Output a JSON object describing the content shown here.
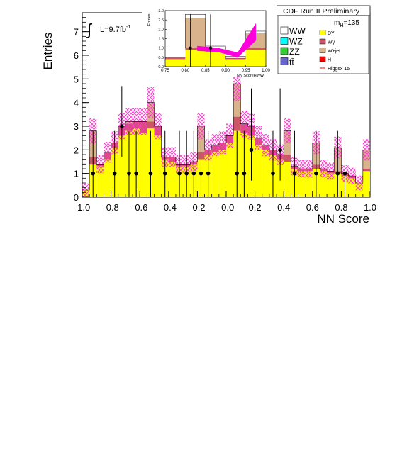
{
  "chart_data": {
    "type": "bar",
    "title": "CDF Run II Preliminary",
    "ylabel": "Entries",
    "xlabel": "NN Score",
    "xlim": [
      -1.0,
      1.0
    ],
    "ylim": [
      0,
      7.8
    ],
    "x_ticks": [
      "-1.0",
      "-0.8",
      "-0.6",
      "-0.4",
      "-0.2",
      "-0.0",
      "0.2",
      "0.4",
      "0.6",
      "0.8",
      "1.0"
    ],
    "y_ticks": [
      "0",
      "1",
      "2",
      "3",
      "4",
      "5",
      "6",
      "7"
    ],
    "luminosity_label": "L=9.7fb",
    "luminosity_sup": "-1",
    "mass_label": "m",
    "mass_sub": "H",
    "mass_value": "=135",
    "bin_edges": [
      -1.0,
      -0.95,
      -0.9,
      -0.85,
      -0.8,
      -0.75,
      -0.7,
      -0.65,
      -0.6,
      -0.55,
      -0.5,
      -0.45,
      -0.4,
      -0.35,
      -0.3,
      -0.25,
      -0.2,
      -0.15,
      -0.1,
      -0.05,
      0.0,
      0.05,
      0.1,
      0.15,
      0.2,
      0.25,
      0.3,
      0.35,
      0.4,
      0.45,
      0.5,
      0.55,
      0.6,
      0.65,
      0.7,
      0.75,
      0.8,
      0.85,
      0.9,
      0.95,
      1.0
    ],
    "series": [
      {
        "name": "DY",
        "color": "#ffff00",
        "values": [
          0.3,
          1.4,
          1.3,
          1.6,
          2.1,
          2.6,
          2.8,
          2.9,
          2.7,
          2.9,
          2.6,
          1.6,
          1.5,
          1.3,
          1.3,
          1.4,
          1.6,
          1.8,
          1.9,
          2.0,
          2.3,
          2.8,
          2.7,
          2.6,
          2.2,
          2.0,
          1.8,
          1.6,
          1.5,
          1.2,
          1.1,
          1.1,
          1.2,
          1.1,
          1.0,
          1.0,
          0.9,
          0.8,
          0.6,
          1.1
        ]
      },
      {
        "name": "Wγ",
        "color": "#cc5566",
        "values": [
          0.0,
          0.3,
          0.1,
          0.3,
          0.2,
          0.4,
          0.3,
          0.3,
          0.5,
          0.3,
          0.4,
          0.1,
          0.2,
          0.1,
          0.1,
          0.1,
          0.3,
          0.2,
          0.3,
          0.3,
          0.3,
          0.6,
          0.4,
          0.4,
          0.3,
          0.2,
          0.2,
          0.2,
          0.3,
          0.1,
          0.1,
          0.1,
          0.2,
          0.1,
          0.1,
          0.1,
          0.1,
          0.1,
          0.0,
          0.1
        ]
      },
      {
        "name": "W+jet",
        "color": "#d9b38c",
        "values": [
          0.0,
          1.1,
          0.0,
          0.0,
          0.0,
          0.0,
          0.1,
          0.0,
          0.0,
          0.8,
          0.0,
          0.0,
          0.0,
          0.0,
          0.0,
          0.0,
          1.1,
          0.0,
          0.0,
          0.0,
          0.0,
          1.4,
          0.0,
          0.0,
          0.0,
          0.0,
          0.0,
          0.0,
          1.0,
          0.0,
          0.0,
          0.0,
          0.9,
          0.0,
          0.0,
          1.0,
          0.0,
          0.0,
          0.0,
          0.8
        ]
      },
      {
        "name": "WW",
        "color": "#ffffff",
        "values": [
          0.0,
          0.0,
          0.0,
          0.0,
          0.0,
          0.0,
          0.0,
          0.0,
          0.0,
          0.0,
          0.0,
          0.0,
          0.0,
          0.0,
          0.0,
          0.0,
          0.0,
          0.0,
          0.0,
          0.0,
          0.0,
          0.0,
          0.0,
          0.0,
          0.0,
          0.0,
          0.0,
          0.0,
          0.0,
          0.0,
          0.0,
          0.0,
          0.0,
          0.0,
          0.0,
          0.0,
          0.0,
          0.0,
          0.0,
          0.0
        ]
      }
    ],
    "band_color": "#ff33cc",
    "data_points": [
      {
        "x": -0.925,
        "y": 1,
        "err_up": 1.8,
        "err_down": 1.0
      },
      {
        "x": -0.775,
        "y": 1,
        "err_up": 1.8,
        "err_down": 1.0
      },
      {
        "x": -0.725,
        "y": 3,
        "err_up": 1.7,
        "err_down": 1.3
      },
      {
        "x": -0.675,
        "y": 1,
        "err_up": 1.8,
        "err_down": 1.0
      },
      {
        "x": -0.625,
        "y": 1,
        "err_up": 1.8,
        "err_down": 1.0
      },
      {
        "x": -0.525,
        "y": 1,
        "err_up": 1.8,
        "err_down": 1.0
      },
      {
        "x": -0.425,
        "y": 1,
        "err_up": 1.8,
        "err_down": 1.0
      },
      {
        "x": -0.325,
        "y": 1,
        "err_up": 1.8,
        "err_down": 1.0
      },
      {
        "x": -0.275,
        "y": 1,
        "err_up": 1.8,
        "err_down": 1.0
      },
      {
        "x": -0.225,
        "y": 1,
        "err_up": 1.8,
        "err_down": 1.0
      },
      {
        "x": -0.175,
        "y": 1,
        "err_up": 1.8,
        "err_down": 1.0
      },
      {
        "x": -0.125,
        "y": 1,
        "err_up": 1.8,
        "err_down": 1.0
      },
      {
        "x": 0.075,
        "y": 1,
        "err_up": 1.8,
        "err_down": 1.0
      },
      {
        "x": 0.125,
        "y": 1,
        "err_up": 1.8,
        "err_down": 1.0
      },
      {
        "x": 0.175,
        "y": 2,
        "err_up": 2.6,
        "err_down": 1.3
      },
      {
        "x": 0.325,
        "y": 1,
        "err_up": 1.8,
        "err_down": 1.0
      },
      {
        "x": 0.375,
        "y": 2,
        "err_up": 2.6,
        "err_down": 1.3
      },
      {
        "x": 0.475,
        "y": 1,
        "err_up": 1.8,
        "err_down": 1.0
      },
      {
        "x": 0.625,
        "y": 1,
        "err_up": 1.8,
        "err_down": 1.0
      },
      {
        "x": 0.775,
        "y": 1,
        "err_up": 1.8,
        "err_down": 1.0
      },
      {
        "x": 0.825,
        "y": 1,
        "err_up": 1.8,
        "err_down": 1.0
      }
    ],
    "legend": {
      "left": [
        "WW",
        "WZ",
        "ZZ",
        "tt̄"
      ],
      "left_colors": [
        "#ffffff",
        "#00ffff",
        "#33cc33",
        "#6666cc"
      ],
      "right": [
        "DY",
        "Wγ",
        "W+jet",
        "H",
        "Higgsx 15"
      ],
      "right_colors": [
        "#ffff00",
        "#cc5566",
        "#d9b38c",
        "#ff0000",
        "#ff0000"
      ]
    },
    "inset": {
      "xlabel": "NN ScoreHWW",
      "ylabel": "Entries",
      "xlim": [
        0.75,
        1.0
      ],
      "ylim": [
        0,
        3.0
      ],
      "x_ticks": [
        "0.75",
        "0.80",
        "0.85",
        "0.90",
        "0.95",
        "1.00"
      ],
      "y_ticks": [
        "0.0",
        "0.5",
        "1.0",
        "1.5",
        "2.0",
        "2.5",
        "3.0"
      ],
      "bin_edges": [
        0.75,
        0.8,
        0.85,
        0.9,
        0.95,
        1.0
      ],
      "dy": [
        0.4,
        0.9,
        0.8,
        0.4,
        0.9
      ],
      "wg": [
        0.1,
        0.1,
        0.1,
        0.05,
        0.1
      ],
      "wjet": [
        0.0,
        1.6,
        0.0,
        0.0,
        0.8
      ],
      "ww": [
        0.0,
        0.2,
        0.2,
        0.1,
        0.1
      ],
      "data_points": [
        {
          "x": 0.8125,
          "y": 1,
          "err_up": 1.8,
          "err_down": 1.0
        },
        {
          "x": 0.8625,
          "y": 1,
          "err_up": 1.8,
          "err_down": 1.0
        }
      ],
      "band": [
        {
          "x": 0.83,
          "lo": 0.85,
          "hi": 1.1
        },
        {
          "x": 0.88,
          "lo": 0.8,
          "hi": 1.0
        },
        {
          "x": 0.93,
          "lo": 0.5,
          "hi": 0.75
        },
        {
          "x": 0.975,
          "lo": 1.4,
          "hi": 2.3
        }
      ]
    }
  }
}
